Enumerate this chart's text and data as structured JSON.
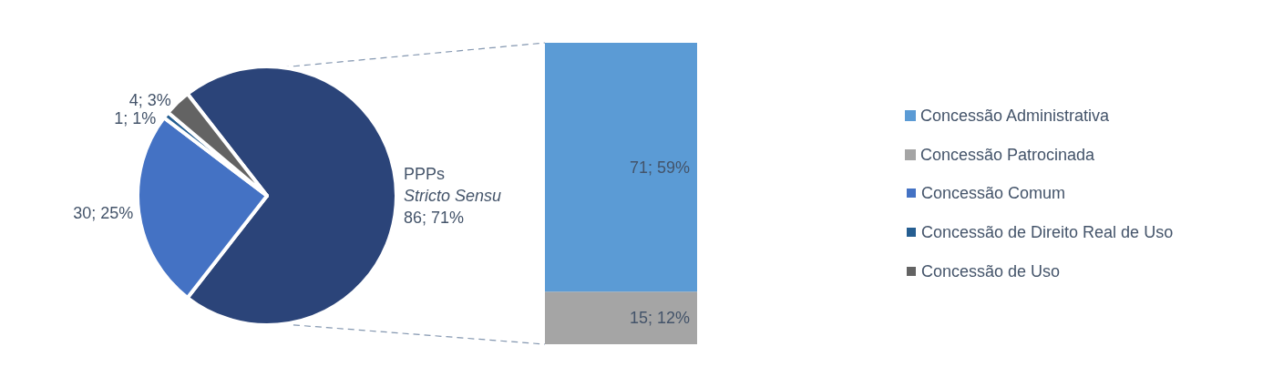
{
  "chart_data": [
    {
      "type": "pie",
      "legend": "right",
      "categories": [
        "PPPs Stricto Sensu",
        "Concessão Comum",
        "Concessão de Direito Real de Uso",
        "Concessão de Uso"
      ],
      "values": [
        86,
        30,
        1,
        4
      ],
      "colors": [
        "#2b4479",
        "#4472c4",
        "#255e91",
        "#636363"
      ],
      "value_labels": [
        "86; 71%",
        "30; 25%",
        "1; 1%",
        "4; 3%"
      ]
    },
    {
      "type": "bar",
      "legend": "right",
      "stacked": true,
      "categories": [
        null
      ],
      "series": [
        {
          "name": "Concessão Patrocinada",
          "color": "#a5a5a5",
          "values": [
            15
          ],
          "value_labels": [
            "15; 12%"
          ]
        },
        {
          "name": "Concessão Administrativa",
          "color": "#5b9bd5",
          "values": [
            71
          ],
          "value_labels": [
            "71; 59%"
          ]
        }
      ]
    }
  ]
}
